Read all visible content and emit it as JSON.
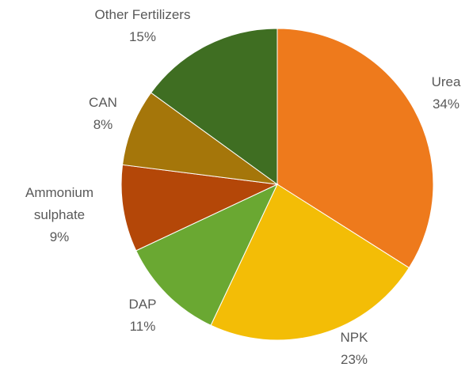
{
  "chart_data": {
    "type": "pie",
    "categories": [
      "Urea",
      "NPK",
      "DAP",
      "Ammonium sulphate",
      "CAN",
      "Other Fertilizers"
    ],
    "values": [
      34,
      23,
      11,
      9,
      8,
      15
    ],
    "value_labels": [
      "34%",
      "23%",
      "11%",
      "9%",
      "8%",
      "15%"
    ],
    "colors": [
      "#ee7a1c",
      "#f3bd06",
      "#6aa832",
      "#b44708",
      "#a5760a",
      "#3f6e22"
    ]
  }
}
